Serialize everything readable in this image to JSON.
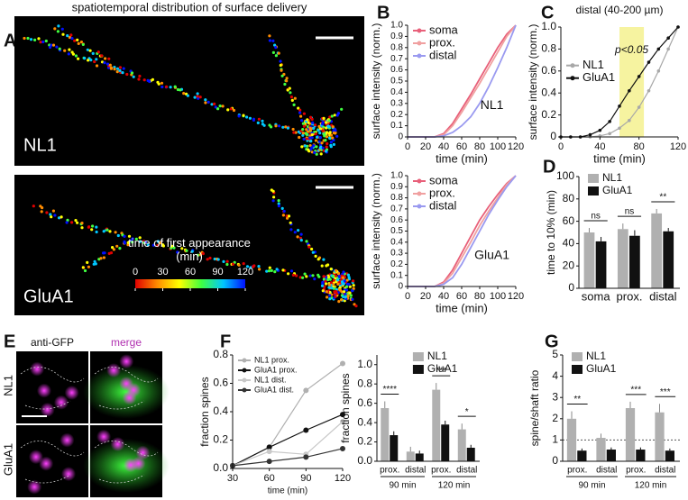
{
  "panel_a": {
    "label": "A",
    "title": "spatiotemporal distribution of surface delivery",
    "images": [
      "NL1",
      "GluA1"
    ],
    "colorbar": {
      "title": "time of first appearance (min)",
      "lim": [
        0,
        120
      ],
      "ticks": [
        0,
        30,
        60,
        90,
        120
      ],
      "colors": [
        "#e00000",
        "#ff8c00",
        "#ffff00",
        "#40ff40",
        "#00c8ff",
        "#0010ff"
      ]
    }
  },
  "panel_e": {
    "label": "E",
    "columns": [
      "anti-GFP",
      "merge"
    ],
    "rows": [
      "NL1",
      "GluA1"
    ]
  },
  "chart_data": [
    {
      "type": "line",
      "label": "B",
      "annotation": "NL1",
      "xlabel": "time (min)",
      "ylabel": "surface intensity (norm.)",
      "x": [
        0,
        10,
        20,
        30,
        40,
        50,
        60,
        70,
        80,
        90,
        100,
        110,
        120
      ],
      "xlim": [
        0,
        120
      ],
      "xticks": [
        0,
        20,
        40,
        60,
        80,
        100,
        120
      ],
      "ylim": [
        0,
        1
      ],
      "yticks": [
        0,
        0.1,
        0.2,
        0.3,
        0.4,
        0.5,
        0.6,
        0.7,
        0.8,
        0.9,
        {
          "value": 1,
          "label": "1.0"
        }
      ],
      "legend": "upper left",
      "markers": false,
      "series": [
        {
          "name": "soma",
          "color": "#e8607a",
          "values": [
            0,
            0,
            0,
            0,
            0.03,
            0.12,
            0.25,
            0.38,
            0.52,
            0.66,
            0.8,
            0.92,
            1.0
          ]
        },
        {
          "name": "prox.",
          "color": "#f0a0a0",
          "values": [
            0,
            0,
            0,
            0,
            0.02,
            0.1,
            0.22,
            0.35,
            0.48,
            0.62,
            0.76,
            0.9,
            1.0
          ]
        },
        {
          "name": "distal",
          "color": "#9a9af0",
          "values": [
            0,
            0,
            0,
            0,
            0.01,
            0.04,
            0.1,
            0.18,
            0.3,
            0.45,
            0.62,
            0.8,
            1.0
          ]
        }
      ]
    },
    {
      "type": "line",
      "annotation": "GluA1",
      "xlabel": "time (min)",
      "ylabel": "surface intensity (norm.)",
      "x": [
        0,
        10,
        20,
        30,
        40,
        50,
        60,
        70,
        80,
        90,
        100,
        110,
        120
      ],
      "xlim": [
        0,
        120
      ],
      "xticks": [
        0,
        20,
        40,
        60,
        80,
        100,
        120
      ],
      "ylim": [
        0,
        1
      ],
      "yticks": [
        0,
        0.1,
        0.2,
        0.3,
        0.4,
        0.5,
        0.6,
        0.7,
        0.8,
        0.9,
        {
          "value": 1,
          "label": "1.0"
        }
      ],
      "legend": "upper left",
      "markers": false,
      "series": [
        {
          "name": "soma",
          "color": "#e8607a",
          "values": [
            0,
            0,
            0,
            0,
            0.04,
            0.15,
            0.3,
            0.45,
            0.6,
            0.72,
            0.83,
            0.93,
            1.0
          ]
        },
        {
          "name": "prox.",
          "color": "#f0a0a0",
          "values": [
            0,
            0,
            0,
            0,
            0.03,
            0.12,
            0.26,
            0.4,
            0.55,
            0.68,
            0.8,
            0.92,
            1.0
          ]
        },
        {
          "name": "distal",
          "color": "#9a9af0",
          "values": [
            0,
            0,
            0,
            0,
            0.02,
            0.08,
            0.2,
            0.35,
            0.5,
            0.65,
            0.78,
            0.9,
            1.0
          ]
        }
      ]
    },
    {
      "type": "line",
      "label": "C",
      "title": "distal (40-200 µm)",
      "annotation": "p<0.05",
      "highlight": [
        60,
        85
      ],
      "highlight_color": "#f6f3a0",
      "xlabel": "time (min)",
      "ylabel": "surface intensity (norm.)",
      "x": [
        0,
        10,
        20,
        30,
        40,
        50,
        60,
        70,
        80,
        90,
        100,
        110,
        120
      ],
      "xlim": [
        0,
        120
      ],
      "xticks": [
        0,
        40,
        80,
        120
      ],
      "ylim": [
        0,
        1
      ],
      "yticks": [
        0,
        0.2,
        0.4,
        0.6,
        0.8,
        {
          "value": 1,
          "label": "1.0"
        }
      ],
      "legend": "center left",
      "markers": true,
      "series": [
        {
          "name": "NL1",
          "color": "#a8a8a8",
          "values": [
            0,
            0,
            0,
            0,
            0.01,
            0.03,
            0.08,
            0.15,
            0.27,
            0.42,
            0.6,
            0.8,
            1.0
          ]
        },
        {
          "name": "GluA1",
          "color": "#111111",
          "values": [
            0,
            0,
            0,
            0.02,
            0.06,
            0.14,
            0.28,
            0.42,
            0.55,
            0.68,
            0.8,
            0.9,
            1.0
          ]
        }
      ]
    },
    {
      "type": "bar",
      "label": "D",
      "ylabel": "time to 10% (min)",
      "categories": [
        "soma",
        "prox.",
        "distal"
      ],
      "ylim": [
        0,
        100
      ],
      "yticks": [
        0,
        20,
        40,
        60,
        80,
        100
      ],
      "legend": "upper left",
      "significance": [
        "ns",
        "ns",
        "**"
      ],
      "series": [
        {
          "name": "NL1",
          "color": "#b0b0b0",
          "values": [
            50,
            53,
            67
          ],
          "errors": [
            4,
            5,
            4
          ]
        },
        {
          "name": "GluA1",
          "color": "#111111",
          "values": [
            42,
            47,
            51
          ],
          "errors": [
            4,
            5,
            3
          ]
        }
      ]
    },
    {
      "type": "line",
      "label": "F",
      "xlabel": "time (min)",
      "ylabel": "fraction spines",
      "x": [
        30,
        60,
        90,
        120
      ],
      "xlim": [
        30,
        120
      ],
      "xticks": [
        30,
        60,
        90,
        120
      ],
      "ylim": [
        0,
        0.8
      ],
      "yticks": [
        {
          "value": 0,
          "label": "0.0"
        },
        0.2,
        0.4,
        0.6,
        0.8
      ],
      "legend": "upper left",
      "markers": true,
      "series": [
        {
          "name": "NL1 prox.",
          "color": "#b0b0b0",
          "values": [
            0.02,
            0.15,
            0.55,
            0.74
          ]
        },
        {
          "name": "GluA1 prox.",
          "color": "#111111",
          "values": [
            0.02,
            0.15,
            0.27,
            0.38
          ]
        },
        {
          "name": "NL1 dist.",
          "color": "#c8c8c8",
          "values": [
            0.02,
            0.12,
            0.1,
            0.33
          ]
        },
        {
          "name": "GluA1 dist.",
          "color": "#333333",
          "values": [
            0.02,
            0.05,
            0.08,
            0.14
          ]
        }
      ]
    },
    {
      "type": "bar",
      "ylabel": "fraction spines",
      "categories": [
        "prox.",
        "distal",
        "prox.",
        "distal"
      ],
      "groups": [
        "90 min",
        "120 min"
      ],
      "ylim": [
        0,
        1.1
      ],
      "yticks": [
        {
          "value": 0,
          "label": "0.0"
        },
        0.2,
        0.4,
        0.6,
        0.8,
        {
          "value": 1,
          "label": "1.0"
        }
      ],
      "legend": "upper center",
      "significance": [
        "****",
        null,
        "***",
        "*"
      ],
      "series": [
        {
          "name": "NL1",
          "color": "#b0b0b0",
          "values": [
            0.55,
            0.1,
            0.74,
            0.33
          ],
          "errors": [
            0.07,
            0.05,
            0.07,
            0.06
          ]
        },
        {
          "name": "GluA1",
          "color": "#111111",
          "values": [
            0.27,
            0.08,
            0.38,
            0.14
          ],
          "errors": [
            0.04,
            0.03,
            0.04,
            0.03
          ]
        }
      ]
    },
    {
      "type": "bar",
      "label": "G",
      "ylabel": "spine/shaft ratio",
      "categories": [
        "prox.",
        "distal",
        "prox.",
        "distal"
      ],
      "groups": [
        "90 min",
        "120 min"
      ],
      "ylim": [
        0,
        5
      ],
      "yticks": [
        0,
        1,
        2,
        3,
        4,
        5
      ],
      "legend": "upper left",
      "reference_line": 1,
      "significance": [
        "**",
        null,
        "***",
        "***"
      ],
      "series": [
        {
          "name": "NL1",
          "color": "#b0b0b0",
          "values": [
            2.0,
            1.1,
            2.5,
            2.3
          ],
          "errors": [
            0.35,
            0.2,
            0.3,
            0.4
          ]
        },
        {
          "name": "GluA1",
          "color": "#111111",
          "values": [
            0.5,
            0.55,
            0.55,
            0.5
          ],
          "errors": [
            0.1,
            0.1,
            0.1,
            0.1
          ]
        }
      ]
    }
  ]
}
